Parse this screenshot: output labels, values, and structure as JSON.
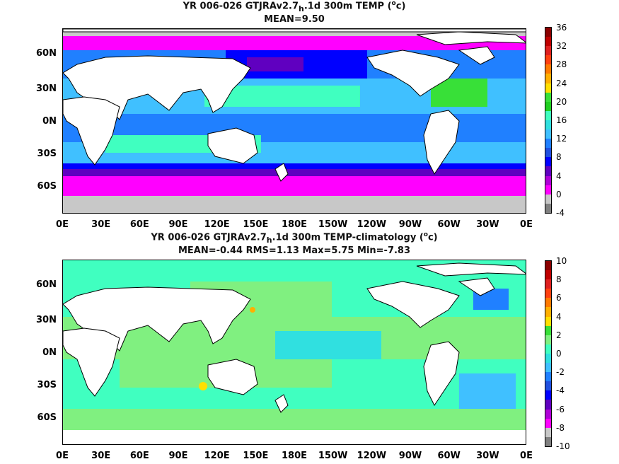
{
  "panels": [
    {
      "title_prefix": "YR 006-026 GTJRAv2.7",
      "title_sub": "h",
      "title_suffix": ".1d 300m TEMP (",
      "title_sup": "o",
      "title_end": "c)",
      "stats": "MEAN=9.50",
      "colorbar": {
        "labels": [
          "36",
          "32",
          "28",
          "24",
          "20",
          "16",
          "12",
          "8",
          "4",
          "0",
          "-4"
        ],
        "colors": [
          "#8b0000",
          "#c00000",
          "#e02020",
          "#ff4010",
          "#ff7a00",
          "#ffb000",
          "#ffe000",
          "#38e038",
          "#20d020",
          "#40ffc0",
          "#30e0e0",
          "#40c0ff",
          "#2080ff",
          "#2050e0",
          "#0000ff",
          "#6000c0",
          "#b000d8",
          "#ff00ff",
          "#c8c8c8",
          "#808080"
        ]
      }
    },
    {
      "title_prefix": "YR 006-026 GTJRAv2.7",
      "title_sub": "h",
      "title_suffix": ".1d 300m TEMP-climatology (",
      "title_sup": "o",
      "title_end": "c)",
      "stats": "MEAN=-0.44   RMS=1.13   Max=5.75   Min=-7.83",
      "colorbar": {
        "labels": [
          "10",
          "8",
          "6",
          "4",
          "2",
          "0",
          "-2",
          "-4",
          "-6",
          "-8",
          "-10"
        ],
        "colors": [
          "#8b0000",
          "#c00000",
          "#e02020",
          "#ff4010",
          "#ff7a00",
          "#ffb000",
          "#ffe000",
          "#38e038",
          "#80f080",
          "#40ffc0",
          "#30e0e0",
          "#40c0ff",
          "#2080ff",
          "#2050e0",
          "#0000ff",
          "#6000c0",
          "#b000d8",
          "#ff00ff",
          "#c8c8c8",
          "#808080"
        ]
      }
    }
  ],
  "lat_labels": [
    "60N",
    "30N",
    "0N",
    "30S",
    "60S"
  ],
  "lon_labels": [
    "0E",
    "30E",
    "60E",
    "90E",
    "120E",
    "150E",
    "180E",
    "150W",
    "120W",
    "90W",
    "60W",
    "30W",
    "0E"
  ]
}
